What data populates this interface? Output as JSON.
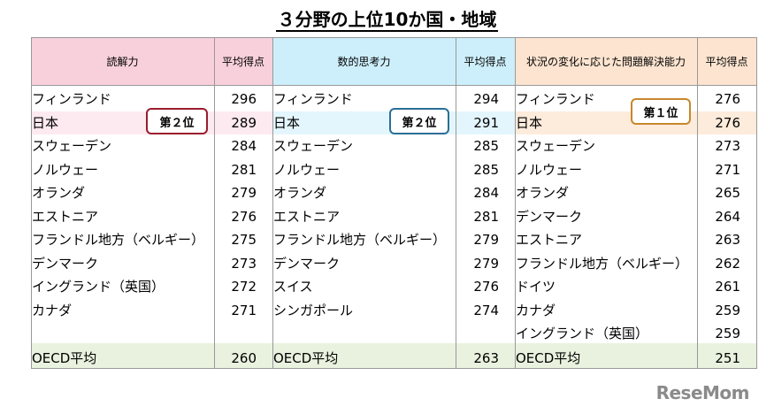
{
  "title": "３分野の上位10か国・地域",
  "sections": [
    {
      "header": "読解力",
      "score_header": "平均得点",
      "badge": "第２位",
      "rows": [
        {
          "name": "フィンランド",
          "score": 296
        },
        {
          "name": "日本",
          "score": 289
        },
        {
          "name": "スウェーデン",
          "score": 284
        },
        {
          "name": "ノルウェー",
          "score": 281
        },
        {
          "name": "オランダ",
          "score": 279
        },
        {
          "name": "エストニア",
          "score": 276
        },
        {
          "name": "フランドル地方（ベルギー）",
          "score": 275
        },
        {
          "name": "デンマーク",
          "score": 273
        },
        {
          "name": "イングランド（英国）",
          "score": 272
        },
        {
          "name": "カナダ",
          "score": 271
        }
      ],
      "oecd": {
        "name": "OECD平均",
        "score": 260
      }
    },
    {
      "header": "数的思考力",
      "score_header": "平均得点",
      "badge": "第２位",
      "rows": [
        {
          "name": "フィンランド",
          "score": 294
        },
        {
          "name": "日本",
          "score": 291
        },
        {
          "name": "スウェーデン",
          "score": 285
        },
        {
          "name": "ノルウェー",
          "score": 285
        },
        {
          "name": "オランダ",
          "score": 284
        },
        {
          "name": "エストニア",
          "score": 281
        },
        {
          "name": "フランドル地方（ベルギー）",
          "score": 279
        },
        {
          "name": "デンマーク",
          "score": 279
        },
        {
          "name": "スイス",
          "score": 276
        },
        {
          "name": "シンガポール",
          "score": 274
        }
      ],
      "oecd": {
        "name": "OECD平均",
        "score": 263
      }
    },
    {
      "header": "状況の変化に応じた問題解決能力",
      "score_header": "平均得点",
      "badge": "第１位",
      "rows": [
        {
          "name": "フィンランド",
          "score": 276
        },
        {
          "name": "日本",
          "score": 276
        },
        {
          "name": "スウェーデン",
          "score": 273
        },
        {
          "name": "ノルウェー",
          "score": 271
        },
        {
          "name": "オランダ",
          "score": 265
        },
        {
          "name": "デンマーク",
          "score": 264
        },
        {
          "name": "エストニア",
          "score": 263
        },
        {
          "name": "フランドル地方（ベルギー）",
          "score": 262
        },
        {
          "name": "ドイツ",
          "score": 261
        },
        {
          "name": "カナダ",
          "score": 259
        },
        {
          "name": "イングランド（英国）",
          "score": 259
        }
      ],
      "oecd": {
        "name": "OECD平均",
        "score": 251
      }
    }
  ],
  "logo": "ReseMom"
}
